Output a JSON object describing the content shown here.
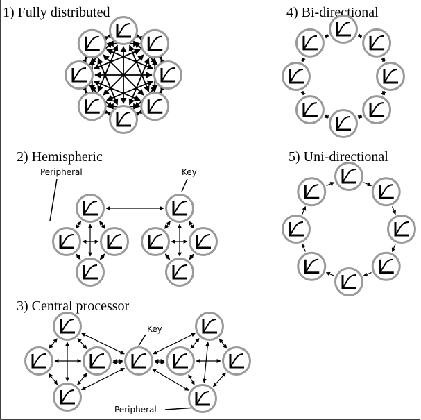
{
  "panels": [
    {
      "title": "1) Fully distributed"
    },
    {
      "title": "2) Hemispheric",
      "labels": [
        "Peripheral",
        "Key"
      ]
    },
    {
      "title": "3) Central processor",
      "labels": [
        "Key",
        "Peripheral"
      ]
    },
    {
      "title": "4) Bi-directional"
    },
    {
      "title": "5) Uni-directional"
    }
  ]
}
